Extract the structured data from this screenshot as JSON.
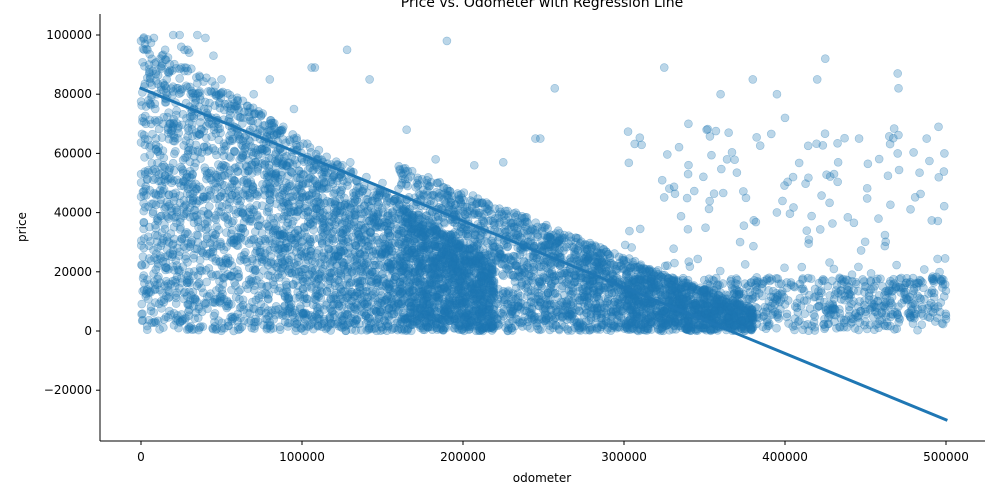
{
  "chart_data": {
    "type": "scatter",
    "title": "Price vs. Odometer with Regression Line",
    "xlabel": "odometer",
    "ylabel": "price",
    "xlim": [
      -25000,
      525000
    ],
    "ylim": [
      -37000,
      106000
    ],
    "x_ticks": [
      0,
      100000,
      200000,
      300000,
      400000,
      500000
    ],
    "x_tick_labels": [
      "0",
      "100000",
      "200000",
      "300000",
      "400000",
      "500000"
    ],
    "y_ticks": [
      -20000,
      0,
      20000,
      40000,
      60000,
      80000,
      100000
    ],
    "y_tick_labels": [
      "−20000",
      "0",
      "20000",
      "40000",
      "60000",
      "80000",
      "100000"
    ],
    "grid": false,
    "legend": "none",
    "colors": {
      "points": "#1f77b4",
      "regression_line": "#1f77b4"
    },
    "point_alpha": 0.3,
    "series": [
      {
        "kind": "scatter",
        "x": [
          0,
          2000,
          5000,
          8000,
          12000,
          15000,
          20000,
          25000,
          30000,
          35000,
          40000,
          45000,
          50000,
          60000,
          70000,
          80000,
          1000,
          3000,
          10000,
          18000,
          22000,
          28000,
          33000,
          42000,
          48000,
          55000,
          65000,
          75000,
          85000,
          95000,
          105000,
          110000,
          120000,
          130000,
          140000,
          150000,
          160000,
          170000,
          180000,
          190000,
          200000,
          210000,
          220000,
          230000,
          240000,
          250000,
          260000,
          270000,
          280000,
          290000,
          300000,
          310000,
          320000,
          330000,
          340000,
          350000,
          360000,
          370000,
          380000,
          390000,
          400000,
          410000,
          420000,
          430000,
          440000,
          450000,
          460000,
          470000,
          480000,
          490000,
          500000,
          24000,
          29000,
          106000,
          108000,
          128000,
          142000,
          165000,
          190000,
          207000,
          248000,
          257000,
          325000,
          340000,
          360000,
          365000,
          380000,
          395000,
          400000,
          420000,
          425000,
          446000,
          470000,
          470500,
          488000,
          499000,
          364000,
          433000,
          405000,
          470000,
          183000,
          225000,
          245000,
          95000,
          56000,
          13000,
          4000,
          16000,
          27000
        ],
        "y": [
          98000,
          95000,
          90000,
          99000,
          92000,
          95000,
          100000,
          96000,
          94000,
          100000,
          99000,
          93000,
          85000,
          78000,
          80000,
          85000,
          72000,
          70000,
          80000,
          88000,
          82000,
          77000,
          75000,
          72000,
          70000,
          66000,
          62000,
          60000,
          64000,
          65000,
          62000,
          58000,
          55000,
          57000,
          52000,
          50000,
          48000,
          45000,
          44000,
          46000,
          42000,
          40000,
          38000,
          36000,
          34000,
          35000,
          33000,
          30000,
          28000,
          26000,
          24000,
          22000,
          20000,
          18000,
          16000,
          14000,
          13000,
          12000,
          11000,
          10000,
          9000,
          8500,
          8000,
          7500,
          7000,
          6500,
          6000,
          5500,
          5000,
          4500,
          4000,
          100000,
          95000,
          89000,
          89000,
          95000,
          85000,
          68000,
          98000,
          56000,
          65000,
          82000,
          89000,
          70000,
          80000,
          67000,
          85000,
          80000,
          72000,
          85000,
          92000,
          65000,
          87000,
          82000,
          65000,
          60000,
          58000,
          57000,
          52000,
          60000,
          58000,
          57000,
          65000,
          75000,
          75000,
          93000,
          95000,
          85000,
          95000
        ],
        "range_note": "dense cloud: price 0–100000 at low odometer, upper bound decreasing to ~30000 near odometer 300000, sparse points up to 500000"
      },
      {
        "kind": "regression_line",
        "x": [
          0,
          500000
        ],
        "y": [
          82000,
          -30000
        ]
      }
    ]
  }
}
